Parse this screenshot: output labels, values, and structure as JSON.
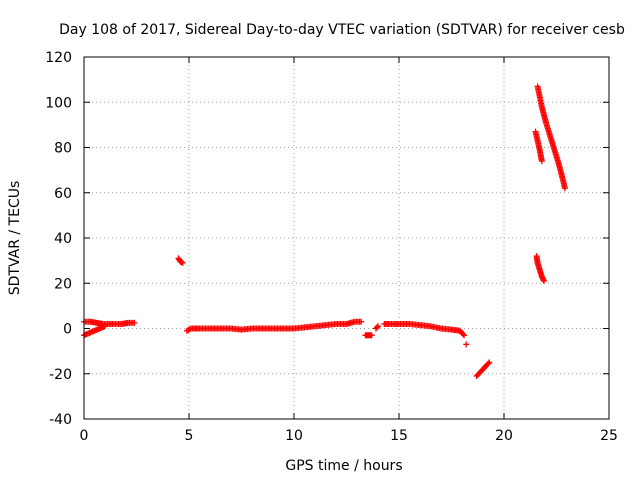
{
  "chart_data": {
    "type": "scatter",
    "title": "Day 108 of 2017, Sidereal Day-to-day VTEC variation (SDTVAR) for receiver cesb",
    "xlabel": "GPS time / hours",
    "ylabel": "SDTVAR / TECUs",
    "xlim": [
      0,
      25
    ],
    "ylim": [
      -40,
      120
    ],
    "xticks": [
      0,
      5,
      10,
      15,
      20,
      25
    ],
    "yticks": [
      -40,
      -20,
      0,
      20,
      40,
      60,
      80,
      100,
      120
    ],
    "grid": true,
    "marker": "plus",
    "color": "#ff0000",
    "series": [
      {
        "name": "SDTVAR",
        "segments": [
          {
            "x": [
              0.0,
              0.3,
              0.6,
              0.9,
              1.2,
              1.5,
              1.8,
              2.1,
              2.4
            ],
            "y": [
              3,
              3,
              2.5,
              2,
              2,
              2,
              2,
              2.5,
              2.5
            ]
          },
          {
            "x": [
              0.0,
              0.25,
              0.5,
              0.75,
              1.0
            ],
            "y": [
              -3,
              -2,
              -1,
              0,
              1
            ]
          },
          {
            "x": [
              4.5,
              4.6,
              4.7
            ],
            "y": [
              31,
              29.5,
              29
            ]
          },
          {
            "x": [
              4.9,
              5.1,
              5.5,
              6.0,
              6.5,
              7.0,
              7.5,
              8.0,
              8.5,
              9.0,
              9.5,
              10.0,
              10.5,
              11.0,
              11.5,
              12.0,
              12.5,
              12.9,
              13.2
            ],
            "y": [
              -1,
              0,
              0,
              0,
              0,
              0,
              -0.5,
              0,
              0,
              0,
              0,
              0,
              0.5,
              1,
              1.5,
              2,
              2,
              3,
              3
            ]
          },
          {
            "x": [
              13.4,
              13.5,
              13.6,
              13.7
            ],
            "y": [
              -3,
              -3,
              -3,
              -3
            ]
          },
          {
            "x": [
              13.9,
              14.0
            ],
            "y": [
              0,
              1
            ]
          },
          {
            "x": [
              14.3,
              14.5,
              14.8,
              15.0,
              15.5,
              16.0,
              16.5,
              17.0,
              17.5,
              17.9,
              18.1
            ],
            "y": [
              2,
              2,
              2,
              2,
              2,
              1.5,
              1,
              0,
              -0.5,
              -1,
              -3
            ]
          },
          {
            "x": [
              18.2
            ],
            "y": [
              -7
            ]
          },
          {
            "x": [
              18.7,
              18.8,
              18.9,
              19.0,
              19.1,
              19.2,
              19.3
            ],
            "y": [
              -21,
              -20,
              -19,
              -18,
              -17,
              -16,
              -15
            ]
          },
          {
            "x": [
              21.5,
              21.6,
              21.7,
              21.8
            ],
            "y": [
              87,
              83,
              79,
              74
            ]
          },
          {
            "x": [
              21.6,
              21.8,
              22.0,
              22.2,
              22.4,
              22.6,
              22.8,
              22.9
            ],
            "y": [
              107,
              98,
              91,
              85,
              79,
              73,
              66,
              62
            ]
          },
          {
            "x": [
              21.55,
              21.6,
              21.7,
              21.8,
              21.9
            ],
            "y": [
              32,
              29,
              26,
              23,
              21
            ]
          }
        ]
      }
    ]
  }
}
